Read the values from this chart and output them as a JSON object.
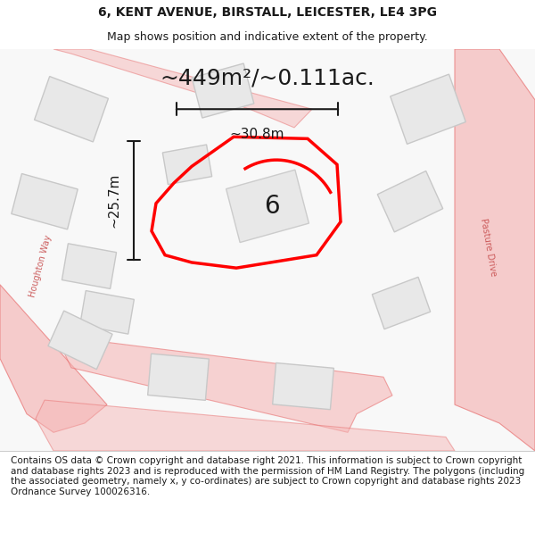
{
  "title_line1": "6, KENT AVENUE, BIRSTALL, LEICESTER, LE4 3PG",
  "title_line2": "Map shows position and indicative extent of the property.",
  "area_text": "~449m²/~0.111ac.",
  "dim_width": "~30.8m",
  "dim_height": "~25.7m",
  "property_number": "6",
  "footer_text": "Contains OS data © Crown copyright and database right 2021. This information is subject to Crown copyright and database rights 2023 and is reproduced with the permission of HM Land Registry. The polygons (including the associated geometry, namely x, y co-ordinates) are subject to Crown copyright and database rights 2023 Ordnance Survey 100026316.",
  "bg_color": "#f5f5f5",
  "map_bg": "#ffffff",
  "road_color": "#f5b8b8",
  "road_line_color": "#e87070",
  "building_fill": "#e8e8e8",
  "building_line": "#c8c8c8",
  "property_fill": "none",
  "property_line": "#ff0000",
  "dim_color": "#1a1a1a",
  "text_color": "#1a1a1a",
  "road_label_color": "#c85050",
  "title_fontsize": 10,
  "subtitle_fontsize": 9,
  "area_fontsize": 18,
  "dim_fontsize": 11,
  "number_fontsize": 20,
  "footer_fontsize": 7.5
}
